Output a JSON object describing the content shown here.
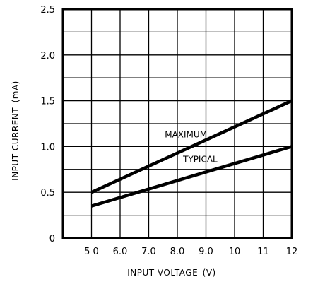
{
  "chart_data": {
    "type": "line",
    "xlabel": "INPUT VOLTAGE–(V)",
    "ylabel": "INPUT CURRENT–(mA)",
    "xlim": [
      4,
      12
    ],
    "ylim": [
      0,
      2.5
    ],
    "grid": true,
    "x_ticks": [
      {
        "value": 5,
        "label": "5 0"
      },
      {
        "value": 6,
        "label": "6.0"
      },
      {
        "value": 7,
        "label": "7.0"
      },
      {
        "value": 8,
        "label": "8.0"
      },
      {
        "value": 9,
        "label": "9.0"
      },
      {
        "value": 10,
        "label": "10"
      },
      {
        "value": 11,
        "label": "11"
      },
      {
        "value": 12,
        "label": "12"
      }
    ],
    "y_ticks": [
      {
        "value": 0,
        "label": "0"
      },
      {
        "value": 0.5,
        "label": "0.5"
      },
      {
        "value": 1.0,
        "label": "1.0"
      },
      {
        "value": 1.5,
        "label": "1.5"
      },
      {
        "value": 2.0,
        "label": "2.0"
      },
      {
        "value": 2.5,
        "label": "2.5"
      }
    ],
    "series": [
      {
        "name": "MAXIMUM",
        "x": [
          5,
          12
        ],
        "y": [
          0.5,
          1.5
        ]
      },
      {
        "name": "TYPICAL",
        "x": [
          5,
          12
        ],
        "y": [
          0.35,
          1.0
        ]
      }
    ],
    "annotations": [
      {
        "text": "MAXIMUM",
        "x": 8.3,
        "y": 1.1
      },
      {
        "text": "TYPICAL",
        "x": 8.8,
        "y": 0.83
      }
    ]
  }
}
